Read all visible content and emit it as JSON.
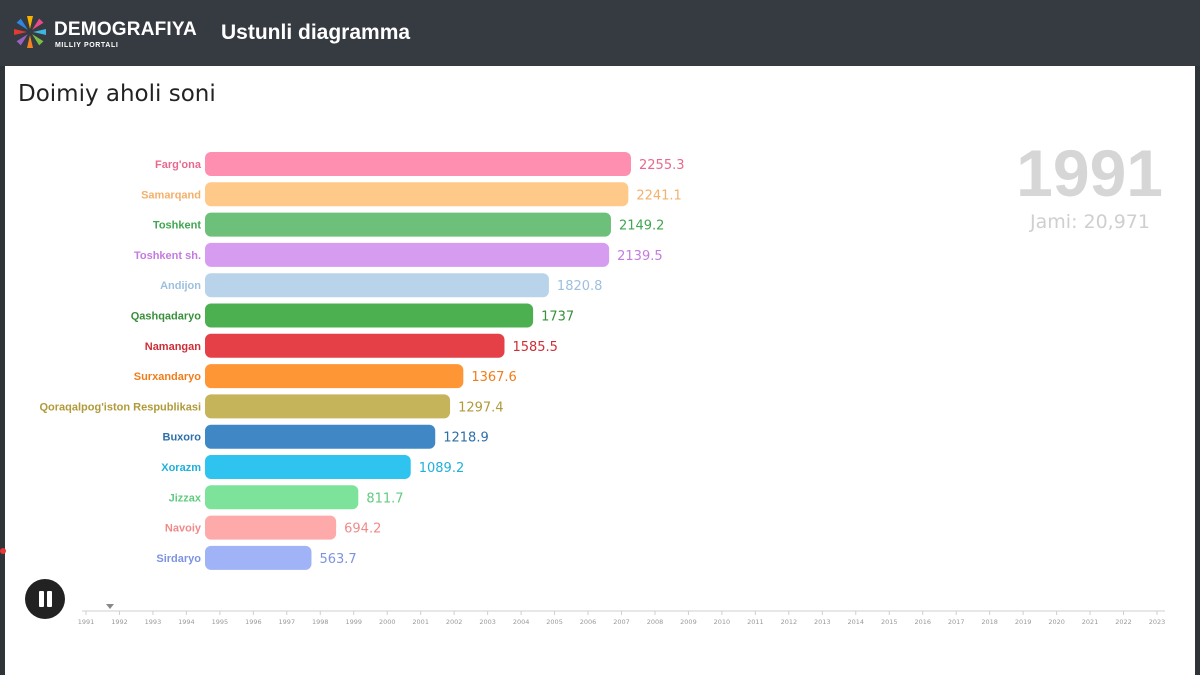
{
  "header": {
    "brand_name": "DEMOGRAFIYA",
    "brand_sub": "MILLIY PORTALI",
    "app_title": "Ustunli diagramma"
  },
  "page_title": "Doimiy aholi soni",
  "chart_data": {
    "type": "bar",
    "orientation": "horizontal",
    "year": "1991",
    "total_text": "Jami: 20,971",
    "categories": [
      "Farg'ona",
      "Samarqand",
      "Toshkent",
      "Toshkent sh.",
      "Andijon",
      "Qashqadaryo",
      "Namangan",
      "Surxandaryo",
      "Qoraqalpog'iston Respublikasi",
      "Buxoro",
      "Xorazm",
      "Jizzax",
      "Navoiy",
      "Sirdaryo"
    ],
    "values": [
      2255.3,
      2241.1,
      2149.2,
      2139.5,
      1820.8,
      1737,
      1585.5,
      1367.6,
      1297.4,
      1218.9,
      1089.2,
      811.7,
      694.2,
      563.7
    ],
    "value_labels": [
      "2255.3",
      "2241.1",
      "2149.2",
      "2139.5",
      "1820.8",
      "1737",
      "1585.5",
      "1367.6",
      "1297.4",
      "1218.9",
      "1089.2",
      "811.7",
      "694.2",
      "563.7"
    ],
    "colors": [
      "#ff8fb1",
      "#ffc98a",
      "#6cc07a",
      "#d59cf0",
      "#b9d4ea",
      "#4caf50",
      "#e53f47",
      "#ff9636",
      "#c6b45a",
      "#3f88c5",
      "#2ec4ef",
      "#7de29a",
      "#ffaaaa",
      "#9fb3f6"
    ],
    "label_colors": [
      "#e8698d",
      "#f3b06a",
      "#3fa651",
      "#c47be0",
      "#9dc0df",
      "#3a8f3c",
      "#cc2f37",
      "#f07d1a",
      "#b09a39",
      "#2d6fa8",
      "#1fb0dd",
      "#5fcc80",
      "#f08a8a",
      "#7d93e0"
    ],
    "xlim": [
      0,
      2255.3
    ],
    "timeline": {
      "years": [
        "1991",
        "1992",
        "1993",
        "1994",
        "1995",
        "1996",
        "1997",
        "1998",
        "1999",
        "2000",
        "2001",
        "2002",
        "2003",
        "2004",
        "2005",
        "2006",
        "2007",
        "2008",
        "2009",
        "2010",
        "2011",
        "2012",
        "2013",
        "2014",
        "2015",
        "2016",
        "2017",
        "2018",
        "2019",
        "2020",
        "2021",
        "2022",
        "2023"
      ],
      "current": "1991"
    }
  },
  "icons": {
    "play_control": "pause-icon",
    "logo": "demografiya-logo-icon"
  }
}
